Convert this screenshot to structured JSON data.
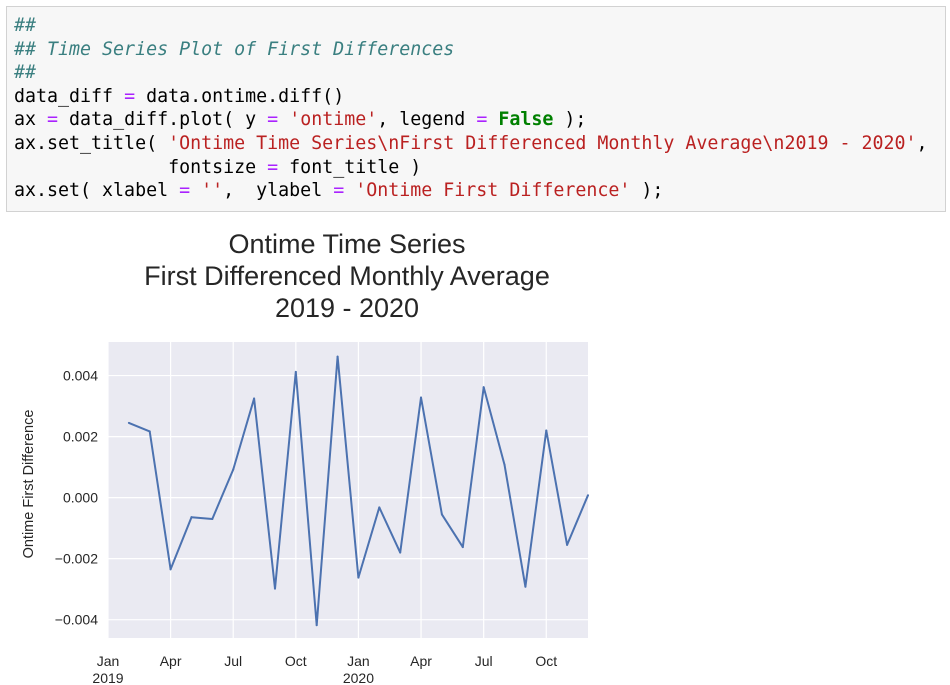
{
  "code_cell": {
    "lines": [
      {
        "parts": [
          {
            "t": "##",
            "c": "cm"
          }
        ]
      },
      {
        "parts": [
          {
            "t": "## Time Series Plot of First Differences",
            "c": "cm"
          }
        ]
      },
      {
        "parts": [
          {
            "t": "##",
            "c": "cm"
          }
        ]
      },
      {
        "parts": [
          {
            "t": "data_diff ",
            "c": ""
          },
          {
            "t": "=",
            "c": "op"
          },
          {
            "t": " data.ontime.diff()",
            "c": ""
          }
        ]
      },
      {
        "parts": [
          {
            "t": "ax ",
            "c": ""
          },
          {
            "t": "=",
            "c": "op"
          },
          {
            "t": " data_diff.plot( y ",
            "c": ""
          },
          {
            "t": "=",
            "c": "op"
          },
          {
            "t": " ",
            "c": ""
          },
          {
            "t": "'ontime'",
            "c": "str"
          },
          {
            "t": ", legend ",
            "c": ""
          },
          {
            "t": "=",
            "c": "op"
          },
          {
            "t": " ",
            "c": ""
          },
          {
            "t": "False",
            "c": "kw"
          },
          {
            "t": " );",
            "c": ""
          }
        ]
      },
      {
        "parts": [
          {
            "t": "ax.set_title( ",
            "c": ""
          },
          {
            "t": "'Ontime Time Series\\nFirst Differenced Monthly Average\\n2019 - 2020'",
            "c": "str"
          },
          {
            "t": ",",
            "c": ""
          }
        ]
      },
      {
        "parts": [
          {
            "t": "              fontsize ",
            "c": ""
          },
          {
            "t": "=",
            "c": "op"
          },
          {
            "t": " font_title )",
            "c": ""
          }
        ]
      },
      {
        "parts": [
          {
            "t": "ax.set( xlabel ",
            "c": ""
          },
          {
            "t": "=",
            "c": "op"
          },
          {
            "t": " ",
            "c": ""
          },
          {
            "t": "''",
            "c": "str"
          },
          {
            "t": ",  ylabel ",
            "c": ""
          },
          {
            "t": "=",
            "c": "op"
          },
          {
            "t": " ",
            "c": ""
          },
          {
            "t": "'Ontime First Difference'",
            "c": "str"
          },
          {
            "t": " );",
            "c": ""
          }
        ]
      }
    ]
  },
  "chart_data": {
    "type": "line",
    "title_lines": [
      "Ontime Time Series",
      "First Differenced Monthly Average",
      "2019 - 2020"
    ],
    "xlabel": "",
    "ylabel": "Ontime First Difference",
    "x": [
      "2019-02",
      "2019-03",
      "2019-04",
      "2019-05",
      "2019-06",
      "2019-07",
      "2019-08",
      "2019-09",
      "2019-10",
      "2019-11",
      "2019-12",
      "2020-01",
      "2020-02",
      "2020-03",
      "2020-04",
      "2020-05",
      "2020-06",
      "2020-07",
      "2020-08",
      "2020-09",
      "2020-10",
      "2020-11",
      "2020-12"
    ],
    "series": [
      {
        "values": [
          0.00245,
          0.00217,
          -0.00235,
          -0.00064,
          -0.0007,
          0.00092,
          0.00325,
          -0.00298,
          0.00412,
          -0.00418,
          0.00462,
          -0.00262,
          -0.00032,
          -0.0018,
          0.00328,
          -0.00055,
          -0.00162,
          0.00362,
          0.00108,
          -0.00292,
          0.0022,
          -0.00155,
          8e-05
        ],
        "color": "#4c72b0"
      }
    ],
    "xlim": [
      "2019-01",
      "2020-12"
    ],
    "ylim": [
      -0.0046,
      0.0051
    ],
    "yticks": [
      -0.004,
      -0.002,
      0.0,
      0.002,
      0.004
    ],
    "ytick_labels": [
      "−0.004",
      "−0.002",
      "0.000",
      "0.002",
      "0.004"
    ],
    "xticks": [
      {
        "at": "2019-01",
        "label": "Jan",
        "sub": "2019"
      },
      {
        "at": "2019-04",
        "label": "Apr",
        "sub": ""
      },
      {
        "at": "2019-07",
        "label": "Jul",
        "sub": ""
      },
      {
        "at": "2019-10",
        "label": "Oct",
        "sub": ""
      },
      {
        "at": "2020-01",
        "label": "Jan",
        "sub": "2020"
      },
      {
        "at": "2020-04",
        "label": "Apr",
        "sub": ""
      },
      {
        "at": "2020-07",
        "label": "Jul",
        "sub": ""
      },
      {
        "at": "2020-10",
        "label": "Oct",
        "sub": ""
      }
    ],
    "grid": true,
    "colors": {
      "background": "#eaeaf2",
      "grid": "#ffffff",
      "line": "#4c72b0",
      "text": "#262626"
    }
  }
}
